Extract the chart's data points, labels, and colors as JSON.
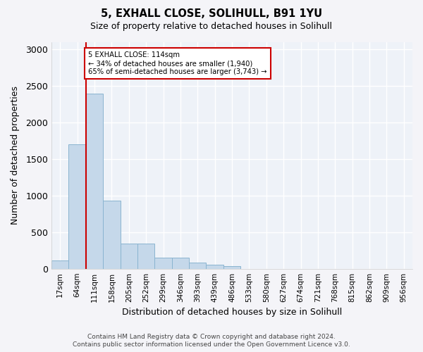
{
  "title1": "5, EXHALL CLOSE, SOLIHULL, B91 1YU",
  "title2": "Size of property relative to detached houses in Solihull",
  "xlabel": "Distribution of detached houses by size in Solihull",
  "ylabel": "Number of detached properties",
  "bin_labels": [
    "17sqm",
    "64sqm",
    "111sqm",
    "158sqm",
    "205sqm",
    "252sqm",
    "299sqm",
    "346sqm",
    "393sqm",
    "439sqm",
    "486sqm",
    "533sqm",
    "580sqm",
    "627sqm",
    "674sqm",
    "721sqm",
    "768sqm",
    "815sqm",
    "862sqm",
    "909sqm",
    "956sqm"
  ],
  "bar_values": [
    115,
    1700,
    2400,
    930,
    345,
    345,
    155,
    155,
    80,
    50,
    35,
    0,
    0,
    0,
    0,
    0,
    0,
    0,
    0,
    0,
    0
  ],
  "bar_color": "#c5d8ea",
  "bar_edge_color": "#8ab4d0",
  "red_line_bin_index": 2,
  "annotation_text_line1": "5 EXHALL CLOSE: 114sqm",
  "annotation_text_line2": "← 34% of detached houses are smaller (1,940)",
  "annotation_text_line3": "65% of semi-detached houses are larger (3,743) →",
  "annotation_box_color": "#ffffff",
  "annotation_box_edge": "#cc0000",
  "ylim": [
    0,
    3100
  ],
  "yticks": [
    0,
    500,
    1000,
    1500,
    2000,
    2500,
    3000
  ],
  "bg_color": "#eef2f8",
  "grid_color": "#ffffff",
  "footer1": "Contains HM Land Registry data © Crown copyright and database right 2024.",
  "footer2": "Contains public sector information licensed under the Open Government Licence v3.0."
}
